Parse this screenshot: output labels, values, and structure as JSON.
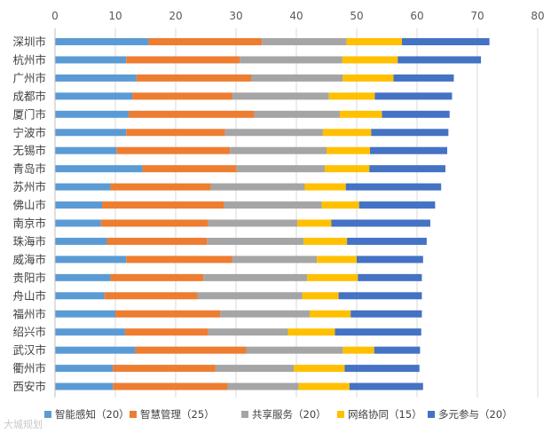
{
  "watermark": "大城规划",
  "chart_data": {
    "type": "bar",
    "orientation": "horizontal",
    "stacked": true,
    "title": "",
    "xlabel": "",
    "ylabel": "",
    "xlim": [
      0,
      80
    ],
    "x_ticks": [
      0,
      10,
      20,
      30,
      40,
      50,
      60,
      70,
      80
    ],
    "x_axis_position": "top",
    "grid": true,
    "legend_position": "bottom",
    "categories": [
      "深圳市",
      "杭州市",
      "广州市",
      "成都市",
      "厦门市",
      "宁波市",
      "无锡市",
      "青岛市",
      "苏州市",
      "佛山市",
      "南京市",
      "珠海市",
      "威海市",
      "贵阳市",
      "舟山市",
      "福州市",
      "绍兴市",
      "武汉市",
      "衢州市",
      "西安市"
    ],
    "series": [
      {
        "name": "智能感知（20）",
        "color": "#5b9bd5",
        "values": [
          15.5,
          11.8,
          13.5,
          12.8,
          12.2,
          11.8,
          10.2,
          14.5,
          9.2,
          7.8,
          7.6,
          8.6,
          11.8,
          9.2,
          8.2,
          10.0,
          11.6,
          13.3,
          9.6,
          9.6
        ]
      },
      {
        "name": "智慧管理（25）",
        "color": "#ed7d31",
        "values": [
          18.8,
          18.8,
          19.0,
          16.6,
          20.8,
          16.4,
          18.8,
          15.6,
          16.6,
          20.2,
          17.8,
          16.6,
          17.6,
          15.4,
          15.4,
          17.4,
          13.8,
          18.4,
          17.0,
          19.0
        ]
      },
      {
        "name": "共享服务（20）",
        "color": "#a5a5a5",
        "values": [
          14.0,
          17.0,
          15.2,
          16.0,
          14.2,
          16.2,
          16.0,
          14.6,
          15.6,
          16.2,
          14.8,
          16.0,
          14.0,
          17.2,
          17.4,
          14.8,
          13.2,
          16.0,
          13.0,
          11.8
        ]
      },
      {
        "name": "网络协同（15）",
        "color": "#ffc000",
        "values": [
          9.2,
          9.2,
          8.4,
          7.6,
          7.0,
          8.0,
          7.2,
          7.4,
          6.8,
          6.2,
          5.6,
          7.2,
          6.6,
          8.4,
          6.0,
          6.8,
          7.8,
          5.2,
          8.4,
          8.4
        ]
      },
      {
        "name": "多元参与（20）",
        "color": "#4472c4",
        "values": [
          14.5,
          13.8,
          10.0,
          12.8,
          11.2,
          12.8,
          12.8,
          12.6,
          15.8,
          12.6,
          16.4,
          13.2,
          11.0,
          10.6,
          13.8,
          11.8,
          14.3,
          7.6,
          12.4,
          12.2
        ]
      }
    ]
  }
}
